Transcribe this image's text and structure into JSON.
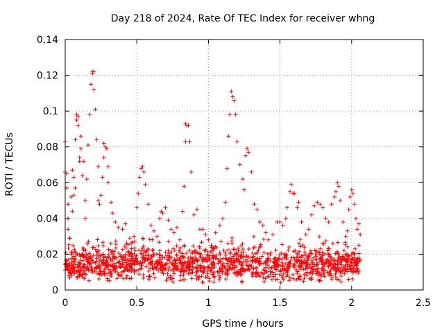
{
  "chart_data": {
    "type": "scatter",
    "title": "Day 218 of 2024, Rate Of TEC Index for receiver whng",
    "xlabel": "GPS time / hours",
    "ylabel": "ROTI / TECUs",
    "xlim": [
      0,
      2.5
    ],
    "ylim": [
      0,
      0.14
    ],
    "x_ticks": [
      "0",
      "0.5",
      "1",
      "1.5",
      "2",
      "2.5"
    ],
    "y_ticks": [
      "0",
      "0.02",
      "0.04",
      "0.06",
      "0.08",
      "0.1",
      "0.12",
      "0.14"
    ],
    "grid": true,
    "legend": "none",
    "marker": "plus",
    "color": "#ff0000",
    "series": [
      {
        "values": [
          [
            0.0,
            0.083
          ],
          [
            0.0,
            0.066
          ],
          [
            0.01,
            0.065
          ],
          [
            0.01,
            0.057
          ],
          [
            0.02,
            0.048
          ],
          [
            0.02,
            0.04
          ],
          [
            0.02,
            0.034
          ],
          [
            0.03,
            0.029
          ],
          [
            0.04,
            0.052
          ],
          [
            0.05,
            0.067
          ],
          [
            0.05,
            0.044
          ],
          [
            0.06,
            0.063
          ],
          [
            0.06,
            0.053
          ],
          [
            0.07,
            0.084
          ],
          [
            0.07,
            0.057
          ],
          [
            0.08,
            0.095
          ],
          [
            0.08,
            0.098
          ],
          [
            0.09,
            0.097
          ],
          [
            0.09,
            0.092
          ],
          [
            0.1,
            0.074
          ],
          [
            0.1,
            0.072
          ],
          [
            0.11,
            0.079
          ],
          [
            0.11,
            0.086
          ],
          [
            0.12,
            0.064
          ],
          [
            0.13,
            0.072
          ],
          [
            0.14,
            0.05
          ],
          [
            0.14,
            0.04
          ],
          [
            0.15,
            0.062
          ],
          [
            0.16,
            0.081
          ],
          [
            0.17,
            0.098
          ],
          [
            0.18,
            0.115
          ],
          [
            0.19,
            0.121
          ],
          [
            0.19,
            0.122
          ],
          [
            0.2,
            0.122
          ],
          [
            0.2,
            0.112
          ],
          [
            0.21,
            0.101
          ],
          [
            0.22,
            0.084
          ],
          [
            0.23,
            0.069
          ],
          [
            0.23,
            0.05
          ],
          [
            0.24,
            0.048
          ],
          [
            0.25,
            0.053
          ],
          [
            0.26,
            0.063
          ],
          [
            0.27,
            0.074
          ],
          [
            0.27,
            0.082
          ],
          [
            0.28,
            0.08
          ],
          [
            0.29,
            0.079
          ],
          [
            0.3,
            0.069
          ],
          [
            0.3,
            0.06
          ],
          [
            0.32,
            0.049
          ],
          [
            0.33,
            0.043
          ],
          [
            0.35,
            0.038
          ],
          [
            0.37,
            0.035
          ],
          [
            0.4,
            0.034
          ],
          [
            0.42,
            0.037
          ],
          [
            0.45,
            0.029
          ],
          [
            0.48,
            0.03
          ],
          [
            0.5,
            0.046
          ],
          [
            0.51,
            0.054
          ],
          [
            0.52,
            0.063
          ],
          [
            0.53,
            0.068
          ],
          [
            0.54,
            0.069
          ],
          [
            0.55,
            0.066
          ],
          [
            0.56,
            0.059
          ],
          [
            0.58,
            0.048
          ],
          [
            0.6,
            0.036
          ],
          [
            0.62,
            0.033
          ],
          [
            0.64,
            0.03
          ],
          [
            0.66,
            0.04
          ],
          [
            0.67,
            0.044
          ],
          [
            0.68,
            0.043
          ],
          [
            0.7,
            0.046
          ],
          [
            0.72,
            0.039
          ],
          [
            0.74,
            0.034
          ],
          [
            0.76,
            0.032
          ],
          [
            0.78,
            0.035
          ],
          [
            0.8,
            0.028
          ],
          [
            0.82,
            0.044
          ],
          [
            0.83,
            0.058
          ],
          [
            0.84,
            0.083
          ],
          [
            0.84,
            0.093
          ],
          [
            0.85,
            0.092
          ],
          [
            0.86,
            0.092
          ],
          [
            0.87,
            0.083
          ],
          [
            0.88,
            0.066
          ],
          [
            0.9,
            0.042
          ],
          [
            0.92,
            0.045
          ],
          [
            0.94,
            0.034
          ],
          [
            0.96,
            0.034
          ],
          [
            0.98,
            0.031
          ],
          [
            1.0,
            0.028
          ],
          [
            1.02,
            0.025
          ],
          [
            1.05,
            0.032
          ],
          [
            1.08,
            0.036
          ],
          [
            1.1,
            0.04
          ],
          [
            1.12,
            0.049
          ],
          [
            1.13,
            0.068
          ],
          [
            1.14,
            0.086
          ],
          [
            1.15,
            0.098
          ],
          [
            1.16,
            0.111
          ],
          [
            1.17,
            0.108
          ],
          [
            1.18,
            0.106
          ],
          [
            1.19,
            0.098
          ],
          [
            1.2,
            0.083
          ],
          [
            1.22,
            0.07
          ],
          [
            1.24,
            0.062
          ],
          [
            1.25,
            0.056
          ],
          [
            1.26,
            0.075
          ],
          [
            1.27,
            0.079
          ],
          [
            1.28,
            0.077
          ],
          [
            1.3,
            0.066
          ],
          [
            1.32,
            0.048
          ],
          [
            1.34,
            0.045
          ],
          [
            1.36,
            0.038
          ],
          [
            1.38,
            0.036
          ],
          [
            1.4,
            0.032
          ],
          [
            1.42,
            0.028
          ],
          [
            1.45,
            0.031
          ],
          [
            1.48,
            0.038
          ],
          [
            1.5,
            0.038
          ],
          [
            1.52,
            0.036
          ],
          [
            1.54,
            0.04
          ],
          [
            1.55,
            0.046
          ],
          [
            1.57,
            0.055
          ],
          [
            1.58,
            0.059
          ],
          [
            1.59,
            0.054
          ],
          [
            1.6,
            0.054
          ],
          [
            1.62,
            0.046
          ],
          [
            1.63,
            0.049
          ],
          [
            1.65,
            0.038
          ],
          [
            1.68,
            0.031
          ],
          [
            1.7,
            0.034
          ],
          [
            1.72,
            0.042
          ],
          [
            1.74,
            0.047
          ],
          [
            1.76,
            0.049
          ],
          [
            1.78,
            0.048
          ],
          [
            1.8,
            0.046
          ],
          [
            1.82,
            0.04
          ],
          [
            1.84,
            0.038
          ],
          [
            1.86,
            0.048
          ],
          [
            1.88,
            0.052
          ],
          [
            1.89,
            0.055
          ],
          [
            1.9,
            0.06
          ],
          [
            1.91,
            0.058
          ],
          [
            1.92,
            0.05
          ],
          [
            1.94,
            0.038
          ],
          [
            1.96,
            0.03
          ],
          [
            1.97,
            0.033
          ],
          [
            1.98,
            0.045
          ],
          [
            1.99,
            0.052
          ],
          [
            2.0,
            0.056
          ],
          [
            2.01,
            0.054
          ],
          [
            2.02,
            0.048
          ],
          [
            2.03,
            0.04
          ],
          [
            2.04,
            0.034
          ],
          [
            2.05,
            0.037
          ],
          [
            2.05,
            0.025
          ],
          [
            2.06,
            0.031
          ]
        ]
      }
    ],
    "dense_band": {
      "x_range": [
        0.0,
        2.06
      ],
      "y_range": [
        0.004,
        0.03
      ],
      "typical": 0.014,
      "n": 1400
    }
  }
}
